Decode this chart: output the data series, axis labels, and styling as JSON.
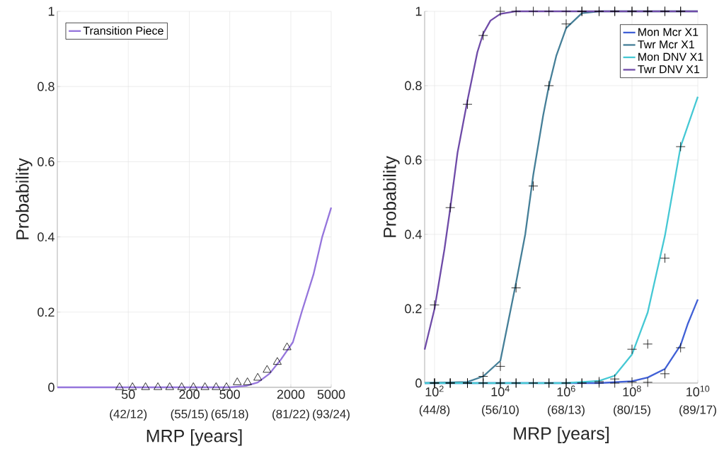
{
  "chart_data": [
    {
      "type": "line",
      "xlabel": "MRP [years]",
      "ylabel": "Probability",
      "log": "x",
      "grid": true,
      "legend": "top left",
      "xlim": [
        10,
        5000
      ],
      "ylim": [
        0,
        1
      ],
      "xticks": [
        50,
        200,
        500,
        2000,
        5000
      ],
      "annotations": [
        "(42/12)",
        "(55/15)",
        "(65/18)",
        "(81/22)",
        "(93/24)"
      ],
      "yticks": [
        0,
        0.2,
        0.4,
        0.6,
        0.8,
        1
      ],
      "series": [
        {
          "name": "Transition Piece",
          "color": "#9575dc",
          "x": [
            10,
            100,
            500,
            724,
            944,
            1230,
            1607,
            2096,
            2558,
            3342,
            4075,
            5000
          ],
          "values": [
            0,
            0,
            0,
            0.004,
            0.013,
            0.036,
            0.075,
            0.12,
            0.2,
            0.3,
            0.4,
            0.478
          ]
        },
        {
          "type": "scatter",
          "marker": "triangle",
          "color": "#000000",
          "x": [
            41,
            55,
            74,
            98,
            128,
            168,
            219,
            285,
            367,
            464,
            593,
            748,
            944,
            1167,
            1472,
            1835
          ],
          "values": [
            0,
            0,
            0,
            0,
            0,
            0,
            0,
            0,
            0,
            0,
            0.013,
            0.013,
            0.025,
            0.046,
            0.067,
            0.106
          ]
        }
      ]
    },
    {
      "type": "line",
      "xlabel": "MRP [years]",
      "ylabel": "Probability",
      "log": "x",
      "grid": true,
      "legend": "top right",
      "xlim": [
        50,
        10000000000
      ],
      "ylim": [
        0,
        1
      ],
      "xticks": [
        {
          "value": 100,
          "label": "10$^{2}$"
        },
        {
          "value": 10000,
          "label": "10$^{4}$"
        },
        {
          "value": 1000000,
          "label": "10$^{6}$"
        },
        {
          "value": 100000000,
          "label": "10$^{8}$"
        },
        {
          "value": 10000000000,
          "label": "10$^{10}$"
        }
      ],
      "annotations": [
        "(44/8)",
        "(56/10)",
        "(68/13)",
        "(80/15)",
        "(89/17)"
      ],
      "yticks": [
        0,
        0.2,
        0.4,
        0.6,
        0.8,
        1
      ],
      "series": [
        {
          "name": "Mon Mcr X1",
          "color": "#4060d6",
          "x": [
            50,
            10000000,
            100000000,
            300000000,
            1000000000,
            3000000000,
            5000000000,
            10000000000
          ],
          "values": [
            0,
            0,
            0.005,
            0.015,
            0.038,
            0.102,
            0.16,
            0.225
          ]
        },
        {
          "name": "Twr Mcr X1",
          "color": "#457f98",
          "x": [
            50,
            1000,
            3000,
            10000,
            30000,
            57000,
            100000,
            200000,
            300000,
            500000,
            1000000,
            3000000,
            10000000,
            10000000000
          ],
          "values": [
            0,
            0.003,
            0.018,
            0.06,
            0.27,
            0.4,
            0.56,
            0.72,
            0.8,
            0.88,
            0.955,
            0.995,
            1,
            1
          ]
        },
        {
          "name": "Mon DNV X1",
          "color": "#45c8d4",
          "x": [
            50,
            1000000,
            10000000,
            30000000,
            100000000,
            300000000,
            1000000000,
            3000000000,
            10000000000
          ],
          "values": [
            0,
            0,
            0.006,
            0.02,
            0.077,
            0.19,
            0.396,
            0.636,
            0.77
          ]
        },
        {
          "name": "Twr DNV X1",
          "color": "#6f4ba8",
          "x": [
            50,
            100,
            200,
            300,
            500,
            1000,
            2000,
            3000,
            5000,
            10000,
            30000,
            10000000000
          ],
          "values": [
            0.09,
            0.2,
            0.36,
            0.47,
            0.62,
            0.76,
            0.89,
            0.94,
            0.975,
            0.993,
            1,
            1
          ]
        },
        {
          "type": "scatter",
          "marker": "cross",
          "color": "#000000",
          "x": [
            100,
            300,
            1000,
            3000,
            10000,
            30000,
            100000,
            300000,
            1000000,
            3000000,
            10000000,
            30000000,
            100000000,
            300000000,
            1000000000,
            3000000000
          ],
          "values": [
            0,
            0,
            0,
            0,
            0,
            0,
            0,
            0,
            0,
            0,
            0,
            0,
            0.003,
            0.002,
            0.025,
            0.095
          ]
        },
        {
          "type": "scatter",
          "marker": "cross",
          "color": "#000000",
          "x": [
            100,
            300,
            1000,
            3000,
            10000,
            30000,
            100000,
            300000,
            1000000,
            3000000,
            10000000,
            30000000,
            100000000,
            300000000,
            1000000000,
            3000000000
          ],
          "values": [
            0,
            0,
            0,
            0.018,
            0.045,
            0.256,
            0.53,
            0.8,
            0.966,
            1,
            1,
            1,
            1,
            1,
            1,
            1
          ]
        },
        {
          "type": "scatter",
          "marker": "cross",
          "color": "#000000",
          "x": [
            100,
            300,
            1000,
            3000,
            10000,
            30000,
            100000,
            300000,
            1000000,
            3000000,
            10000000,
            30000000,
            100000000,
            300000000,
            1000000000,
            3000000000
          ],
          "values": [
            0,
            0,
            0,
            0,
            0,
            0,
            0,
            0,
            0,
            0,
            0.004,
            0.011,
            0.091,
            0.105,
            0.336,
            0.636
          ]
        },
        {
          "type": "scatter",
          "marker": "cross",
          "color": "#000000",
          "x": [
            100,
            300,
            1000,
            3000,
            10000,
            30000,
            100000,
            300000,
            1000000,
            3000000,
            10000000,
            30000000,
            100000000,
            300000000,
            1000000000,
            3000000000
          ],
          "values": [
            0.21,
            0.472,
            0.75,
            0.935,
            1,
            1,
            1,
            1,
            1,
            1,
            1,
            1,
            1,
            1,
            1,
            1
          ]
        }
      ]
    }
  ]
}
